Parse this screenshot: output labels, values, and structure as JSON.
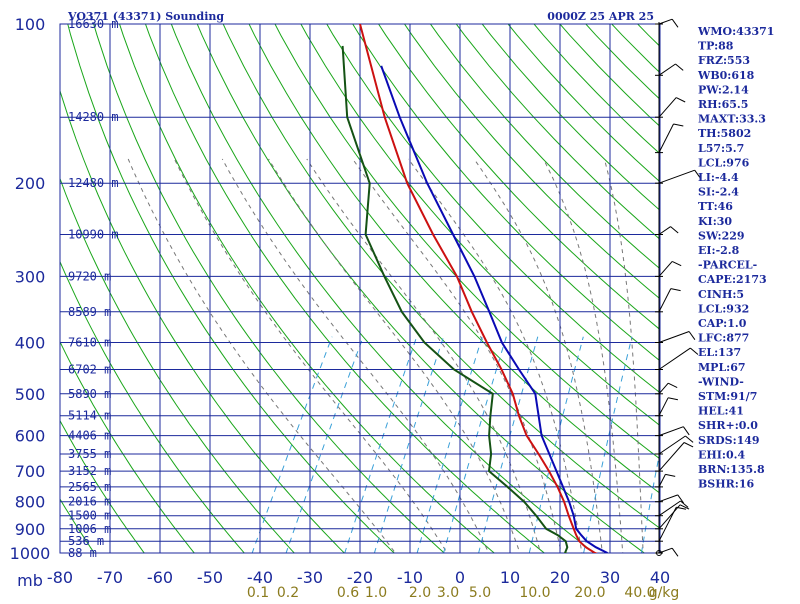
{
  "header": {
    "station": "VO371 (43371) Sounding",
    "time": "0000Z 25 APR 25"
  },
  "colors": {
    "grid": "#1c2a9c",
    "dry_adiabat": "#1aa61a",
    "moist_adiabat": "#777777",
    "mixing_ratio": "#3aa0d8",
    "temperature": "#cc1111",
    "dewpoint": "#145214",
    "parcel": "#0a0ab4",
    "wind": "#000000",
    "mixing_label": "#8b7b1e"
  },
  "stats": [
    "WMO:43371",
    "TP:88",
    "FRZ:553",
    "WB0:618",
    "PW:2.14",
    "RH:65.5",
    "MAXT:33.3",
    "TH:5802",
    "L57:5.7",
    "LCL:976",
    "LI:-4.4",
    "SI:-2.4",
    "TT:46",
    "KI:30",
    "SW:229",
    "EI:-2.8",
    "-PARCEL-",
    "CAPE:2173",
    "CINH:5",
    "LCL:932",
    "CAP:1.0",
    "LFC:877",
    "EL:137",
    "MPL:67",
    "-WIND-",
    "STM:91/7",
    "HEL:41",
    "SHR+:0.0",
    "SRDS:149",
    "EHI:0.4",
    "BRN:135.8",
    "BSHR:16"
  ],
  "chart_data": {
    "type": "line",
    "title": "VO371 (43371) Sounding",
    "xlabel": "",
    "ylabel": "mb",
    "pressure_axis": {
      "scale": "log",
      "range_mb": [
        1000,
        100
      ],
      "ticks": [
        100,
        200,
        300,
        400,
        500,
        600,
        700,
        800,
        900,
        1000
      ],
      "label": "mb"
    },
    "temperature_axis": {
      "range_c": [
        -80,
        40
      ],
      "ticks": [
        -80,
        -70,
        -60,
        -50,
        -40,
        -30,
        -20,
        -10,
        0,
        10,
        20,
        30,
        40
      ],
      "labels": [
        "-80",
        "-70",
        "-60",
        "-50",
        "-40",
        "-30",
        "-20",
        "-10",
        "0",
        "10",
        "20",
        "30",
        "40"
      ],
      "skew": "skew-T"
    },
    "mixing_ratio_labels": [
      "0.1",
      "0.2",
      "0.6",
      "1.0",
      "2.0",
      "3.0",
      "5.0",
      "10.0",
      "20.0",
      "40.0",
      "g/kg"
    ],
    "height_labels": [
      {
        "p": 100,
        "h": "16630 m"
      },
      {
        "p": 150,
        "h": "14280 m"
      },
      {
        "p": 200,
        "h": "12480 m"
      },
      {
        "p": 250,
        "h": "10990 m"
      },
      {
        "p": 300,
        "h": "9720 m"
      },
      {
        "p": 350,
        "h": "8589 m"
      },
      {
        "p": 400,
        "h": "7610 m"
      },
      {
        "p": 450,
        "h": "6702 m"
      },
      {
        "p": 500,
        "h": "5890 m"
      },
      {
        "p": 550,
        "h": "5114 m"
      },
      {
        "p": 600,
        "h": "4406 m"
      },
      {
        "p": 650,
        "h": "3755 m"
      },
      {
        "p": 700,
        "h": "3152 m"
      },
      {
        "p": 750,
        "h": "2565 m"
      },
      {
        "p": 800,
        "h": "2016 m"
      },
      {
        "p": 850,
        "h": "1500 m"
      },
      {
        "p": 900,
        "h": "1006 m"
      },
      {
        "p": 950,
        "h": "536 m"
      },
      {
        "p": 1000,
        "h": "88 m"
      }
    ],
    "series": [
      {
        "name": "Temperature",
        "points": [
          [
            1003,
            27.5
          ],
          [
            1000,
            27.0
          ],
          [
            975,
            24.5
          ],
          [
            950,
            22.5
          ],
          [
            925,
            21.2
          ],
          [
            900,
            20.0
          ],
          [
            850,
            17.5
          ],
          [
            800,
            15.0
          ],
          [
            750,
            12.0
          ],
          [
            700,
            8.5
          ],
          [
            650,
            4.5
          ],
          [
            600,
            0.0
          ],
          [
            550,
            -3.8
          ],
          [
            500,
            -7.5
          ],
          [
            450,
            -12.5
          ],
          [
            400,
            -18.5
          ],
          [
            350,
            -25.0
          ],
          [
            300,
            -32.0
          ],
          [
            250,
            -41.5
          ],
          [
            200,
            -52.5
          ],
          [
            150,
            -64.5
          ],
          [
            100,
            -80.0
          ]
        ]
      },
      {
        "name": "Dewpoint",
        "points": [
          [
            1003,
            21.5
          ],
          [
            1000,
            21.0
          ],
          [
            975,
            20.8
          ],
          [
            950,
            19.8
          ],
          [
            925,
            17.5
          ],
          [
            900,
            14.5
          ],
          [
            850,
            11.0
          ],
          [
            800,
            7.0
          ],
          [
            750,
            2.0
          ],
          [
            700,
            -3.5
          ],
          [
            650,
            -5.0
          ],
          [
            600,
            -7.5
          ],
          [
            550,
            -9.5
          ],
          [
            500,
            -11.5
          ],
          [
            450,
            -22.0
          ],
          [
            400,
            -31.0
          ],
          [
            350,
            -39.0
          ],
          [
            300,
            -46.5
          ],
          [
            250,
            -55.0
          ],
          [
            200,
            -60.0
          ],
          [
            150,
            -72.0
          ],
          [
            110,
            -81.0
          ]
        ]
      },
      {
        "name": "Parcel",
        "points": [
          [
            1000,
            29.5
          ],
          [
            975,
            26.5
          ],
          [
            950,
            24.0
          ],
          [
            925,
            22.2
          ],
          [
            900,
            20.5
          ],
          [
            850,
            18.5
          ],
          [
            800,
            16.0
          ],
          [
            700,
            10.0
          ],
          [
            600,
            3.0
          ],
          [
            500,
            -3.0
          ],
          [
            450,
            -9.0
          ],
          [
            400,
            -15.5
          ],
          [
            350,
            -21.5
          ],
          [
            300,
            -28.5
          ],
          [
            250,
            -37.5
          ],
          [
            200,
            -48.5
          ],
          [
            150,
            -61.5
          ],
          [
            120,
            -71.0
          ]
        ]
      }
    ],
    "wind_profile_mb": [
      100,
      125,
      150,
      175,
      200,
      250,
      300,
      350,
      400,
      450,
      500,
      550,
      600,
      650,
      700,
      750,
      800,
      850,
      900,
      950,
      1000
    ]
  }
}
